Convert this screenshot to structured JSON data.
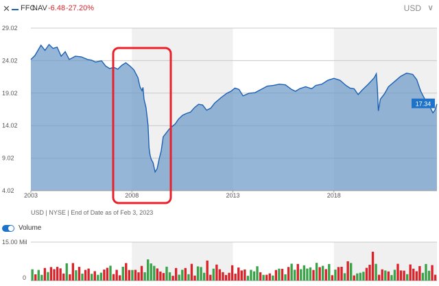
{
  "header": {
    "close_glyph": "✕",
    "ticker": "FFC",
    "nav_label": "NAV",
    "nav_change": "-6.48",
    "nav_change_pct": "-27.20%",
    "currency": "USD",
    "currency_chevron": "∨",
    "colors": {
      "line": "#1a5fb4",
      "negative": "#d8232a"
    }
  },
  "source_note": "USD | NYSE | End of Date as of Feb 3, 2023",
  "volume_toggle": {
    "label": "Volume",
    "on": true
  },
  "chart_data": [
    {
      "type": "area",
      "series": [
        {
          "values": [
            [
              2003.0,
              24.2
            ],
            [
              2003.2,
              24.8
            ],
            [
              2003.5,
              26.4
            ],
            [
              2003.7,
              25.6
            ],
            [
              2003.9,
              26.5
            ],
            [
              2004.1,
              25.9
            ],
            [
              2004.3,
              26.1
            ],
            [
              2004.5,
              24.7
            ],
            [
              2004.7,
              25.4
            ],
            [
              2004.9,
              24.2
            ],
            [
              2005.2,
              24.7
            ],
            [
              2005.5,
              24.6
            ],
            [
              2005.8,
              24.2
            ],
            [
              2006.0,
              24.1
            ],
            [
              2006.2,
              23.8
            ],
            [
              2006.5,
              24.0
            ],
            [
              2006.7,
              23.2
            ],
            [
              2006.9,
              22.8
            ],
            [
              2007.1,
              23.0
            ],
            [
              2007.3,
              22.7
            ],
            [
              2007.5,
              23.3
            ],
            [
              2007.7,
              23.7
            ],
            [
              2007.9,
              23.2
            ],
            [
              2008.1,
              22.6
            ],
            [
              2008.3,
              21.4
            ],
            [
              2008.4,
              20.0
            ],
            [
              2008.5,
              19.4
            ],
            [
              2008.55,
              19.9
            ],
            [
              2008.6,
              18.1
            ],
            [
              2008.7,
              16.8
            ],
            [
              2008.8,
              14.1
            ],
            [
              2008.85,
              10.6
            ],
            [
              2008.9,
              9.5
            ],
            [
              2008.95,
              8.9
            ],
            [
              2009.05,
              8.3
            ],
            [
              2009.15,
              6.9
            ],
            [
              2009.25,
              7.4
            ],
            [
              2009.35,
              8.9
            ],
            [
              2009.45,
              10.1
            ],
            [
              2009.55,
              12.3
            ],
            [
              2009.7,
              12.9
            ],
            [
              2009.85,
              13.5
            ],
            [
              2010.0,
              13.9
            ],
            [
              2010.15,
              14.3
            ],
            [
              2010.3,
              15.0
            ],
            [
              2010.5,
              15.6
            ],
            [
              2010.7,
              15.9
            ],
            [
              2010.9,
              16.1
            ],
            [
              2011.1,
              16.8
            ],
            [
              2011.3,
              17.3
            ],
            [
              2011.5,
              17.2
            ],
            [
              2011.7,
              16.4
            ],
            [
              2011.9,
              16.7
            ],
            [
              2012.1,
              17.5
            ],
            [
              2012.4,
              18.3
            ],
            [
              2012.7,
              19.0
            ],
            [
              2012.9,
              19.3
            ],
            [
              2013.1,
              19.8
            ],
            [
              2013.3,
              19.6
            ],
            [
              2013.5,
              18.6
            ],
            [
              2013.8,
              19.0
            ],
            [
              2014.1,
              19.1
            ],
            [
              2014.4,
              19.6
            ],
            [
              2014.7,
              20.1
            ],
            [
              2015.0,
              20.2
            ],
            [
              2015.3,
              20.4
            ],
            [
              2015.6,
              20.3
            ],
            [
              2015.9,
              19.6
            ],
            [
              2016.1,
              19.3
            ],
            [
              2016.3,
              19.7
            ],
            [
              2016.6,
              20.0
            ],
            [
              2016.9,
              19.7
            ],
            [
              2017.1,
              20.2
            ],
            [
              2017.4,
              20.4
            ],
            [
              2017.7,
              21.0
            ],
            [
              2018.0,
              21.3
            ],
            [
              2018.3,
              21.0
            ],
            [
              2018.6,
              20.2
            ],
            [
              2018.8,
              19.8
            ],
            [
              2019.0,
              19.7
            ],
            [
              2019.2,
              18.8
            ],
            [
              2019.4,
              19.5
            ],
            [
              2019.7,
              20.4
            ],
            [
              2020.0,
              21.4
            ],
            [
              2020.1,
              22.0
            ],
            [
              2020.15,
              19.9
            ],
            [
              2020.2,
              16.3
            ],
            [
              2020.3,
              18.1
            ],
            [
              2020.5,
              18.9
            ],
            [
              2020.7,
              20.0
            ],
            [
              2021.0,
              20.8
            ],
            [
              2021.3,
              21.6
            ],
            [
              2021.6,
              22.1
            ],
            [
              2021.9,
              21.9
            ],
            [
              2022.1,
              21.1
            ],
            [
              2022.3,
              19.3
            ],
            [
              2022.5,
              18.1
            ],
            [
              2022.7,
              17.3
            ],
            [
              2022.8,
              16.6
            ],
            [
              2022.9,
              16.0
            ],
            [
              2023.0,
              16.4
            ],
            [
              2023.1,
              17.34
            ]
          ]
        }
      ],
      "x_ticks": [
        "2003",
        "2008",
        "2013",
        "2018"
      ],
      "y_ticks": [
        "29.02",
        "24.02",
        "19.02",
        "14.02",
        "9.02",
        "4.02"
      ],
      "xlim": [
        2003,
        2023.1
      ],
      "ylim": [
        4.02,
        29.02
      ],
      "last_value_label": "17.34",
      "grid": true
    },
    {
      "type": "bar",
      "title": "Volume",
      "y_ticks": [
        "15.00 Mil",
        "0"
      ],
      "ylim": [
        0,
        15
      ],
      "xlim": [
        2003,
        2023.1
      ],
      "bar_count": 130,
      "colors": {
        "up": "#3aa34a",
        "down": "#d8232a"
      }
    }
  ]
}
